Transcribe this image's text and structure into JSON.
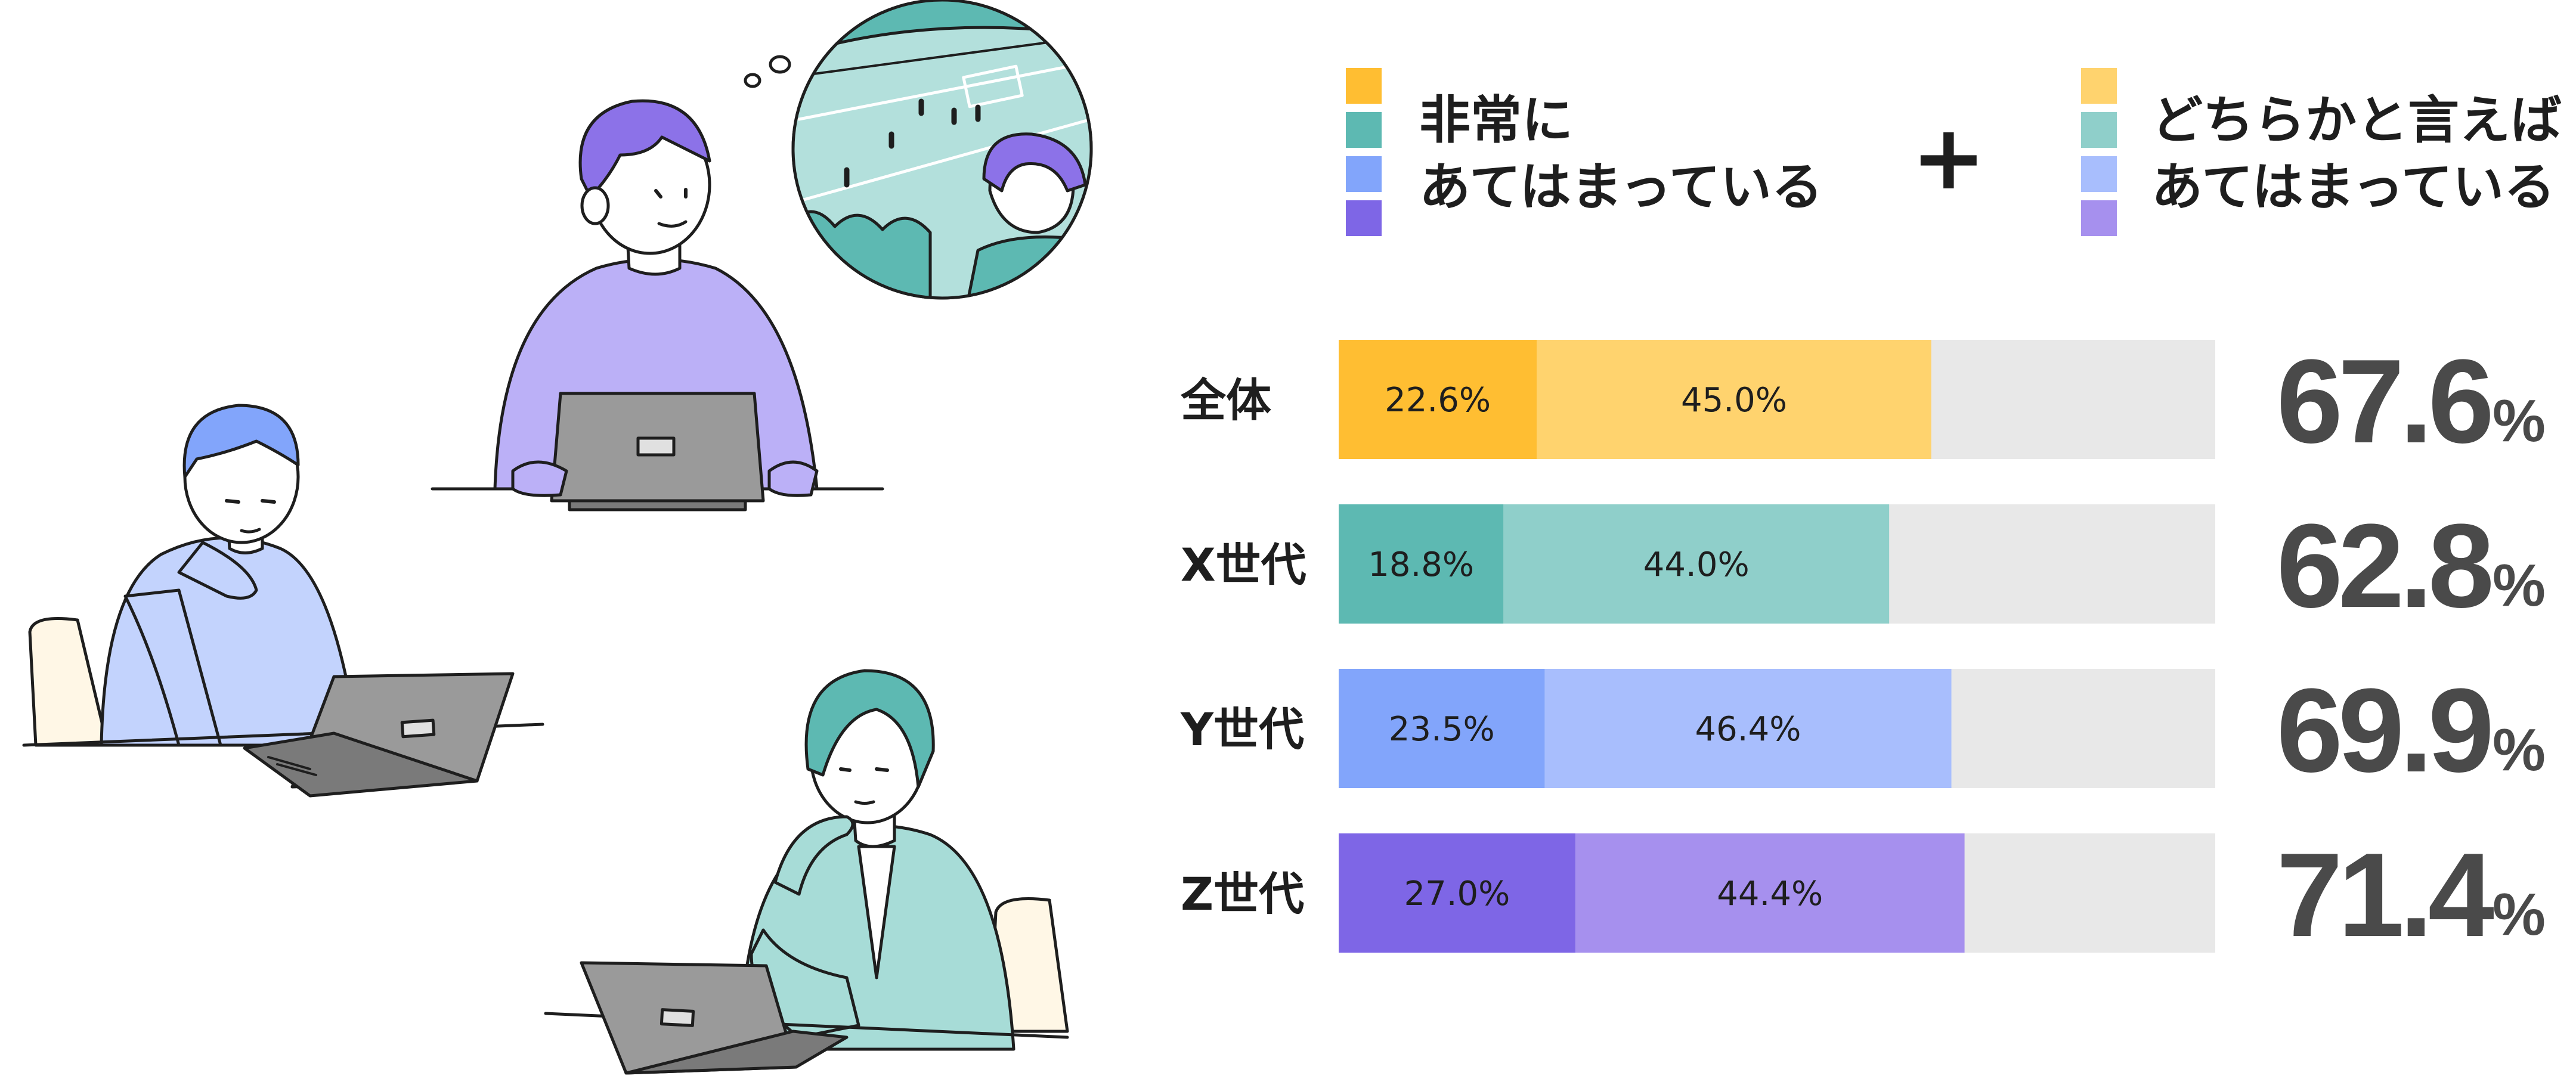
{
  "legend": {
    "strong_line1": "非常に",
    "strong_line2": "あてはまっている",
    "plus": "+",
    "weak_line1": "どちらかと言えば",
    "weak_line2": "あてはまっている"
  },
  "illustration_icons": [
    "man-thinking-of-soccer-icon",
    "man-resting-chin-icon",
    "woman-thinking-icon",
    "laptop-icon"
  ],
  "chart_data": {
    "type": "bar",
    "orientation": "horizontal",
    "stacked": true,
    "categories": [
      "全体",
      "X世代",
      "Y世代",
      "Z世代"
    ],
    "series": [
      {
        "name": "非常にあてはまっている",
        "values": [
          22.6,
          18.8,
          23.5,
          27.0
        ]
      },
      {
        "name": "どちらかと言えばあてはまっている",
        "values": [
          45.0,
          44.0,
          46.4,
          44.4
        ]
      }
    ],
    "data_labels": [
      [
        "22.6%",
        "45.0%"
      ],
      [
        "18.8%",
        "44.0%"
      ],
      [
        "23.5%",
        "46.4%"
      ],
      [
        "27.0%",
        "44.4%"
      ]
    ],
    "totals": [
      "67.6",
      "62.8",
      "69.9",
      "71.4"
    ],
    "total_unit": "%",
    "xlim": [
      0,
      100
    ],
    "colors": {
      "strong": [
        "#FFBE32",
        "#5DB9B2",
        "#82A5FB",
        "#7E66E6"
      ],
      "weak": [
        "#FFD36E",
        "#8FCFCA",
        "#A8BEFD",
        "#A690EE"
      ],
      "track": "#E8E8E8"
    }
  }
}
